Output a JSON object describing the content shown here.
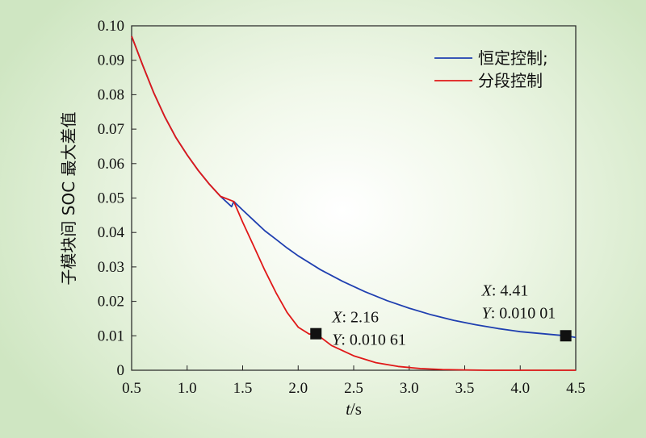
{
  "chart_data": {
    "type": "line",
    "xlabel_var": "t",
    "xlabel_unit": "/s",
    "ylabel": "子模块间 SOC 最大差值",
    "xlim": [
      0.5,
      4.5
    ],
    "ylim": [
      0,
      0.1
    ],
    "xticks": [
      0.5,
      1.0,
      1.5,
      2.0,
      2.5,
      3.0,
      3.5,
      4.0,
      4.5
    ],
    "xtick_labels": [
      "0.5",
      "1.0",
      "1.5",
      "2.0",
      "2.5",
      "3.0",
      "3.5",
      "4.0",
      "4.5"
    ],
    "yticks": [
      0,
      0.01,
      0.02,
      0.03,
      0.04,
      0.05,
      0.06,
      0.07,
      0.08,
      0.09,
      0.1
    ],
    "ytick_labels": [
      "0",
      "0.01",
      "0.02",
      "0.03",
      "0.04",
      "0.05",
      "0.06",
      "0.07",
      "0.08",
      "0.09",
      "0.10"
    ],
    "legend_position": "top-right",
    "grid": false,
    "series": [
      {
        "name": "恒定控制;",
        "color": "#1f3fb0",
        "x": [
          0.5,
          0.6,
          0.7,
          0.8,
          0.9,
          1.0,
          1.1,
          1.2,
          1.3,
          1.4,
          1.42,
          1.5,
          1.6,
          1.7,
          1.8,
          1.9,
          2.0,
          2.2,
          2.4,
          2.6,
          2.8,
          3.0,
          3.2,
          3.4,
          3.6,
          3.8,
          4.0,
          4.2,
          4.41,
          4.5
        ],
        "y": [
          0.097,
          0.0885,
          0.0805,
          0.0735,
          0.0675,
          0.0625,
          0.058,
          0.054,
          0.0505,
          0.0475,
          0.049,
          0.0465,
          0.0435,
          0.0405,
          0.038,
          0.0355,
          0.0332,
          0.0292,
          0.0258,
          0.0228,
          0.0202,
          0.018,
          0.0161,
          0.0145,
          0.0132,
          0.0121,
          0.0112,
          0.0106,
          0.01001,
          0.0095
        ]
      },
      {
        "name": "分段控制",
        "color": "#e01818",
        "x": [
          0.5,
          0.6,
          0.7,
          0.8,
          0.9,
          1.0,
          1.1,
          1.2,
          1.3,
          1.42,
          1.5,
          1.6,
          1.7,
          1.8,
          1.9,
          2.0,
          2.1,
          2.16,
          2.3,
          2.5,
          2.7,
          2.9,
          3.1,
          3.3,
          3.5,
          3.7,
          4.0,
          4.3,
          4.5
        ],
        "y": [
          0.097,
          0.0885,
          0.0805,
          0.0735,
          0.0675,
          0.0625,
          0.058,
          0.054,
          0.0505,
          0.049,
          0.043,
          0.036,
          0.029,
          0.0225,
          0.0168,
          0.0125,
          0.0105,
          0.01061,
          0.0072,
          0.0042,
          0.0022,
          0.0011,
          0.0005,
          0.0002,
          0.0001,
          0.0,
          0.0,
          0.0,
          0.0
        ]
      }
    ],
    "markers": [
      {
        "x": 2.16,
        "y": 0.01061,
        "label_x": "X",
        "value_x": ": 2.16",
        "label_y": "Y",
        "value_y": ": 0.010 61"
      },
      {
        "x": 4.41,
        "y": 0.01001,
        "label_x": "X",
        "value_x": ": 4.41",
        "label_y": "Y",
        "value_y": ": 0.010 01"
      }
    ]
  }
}
